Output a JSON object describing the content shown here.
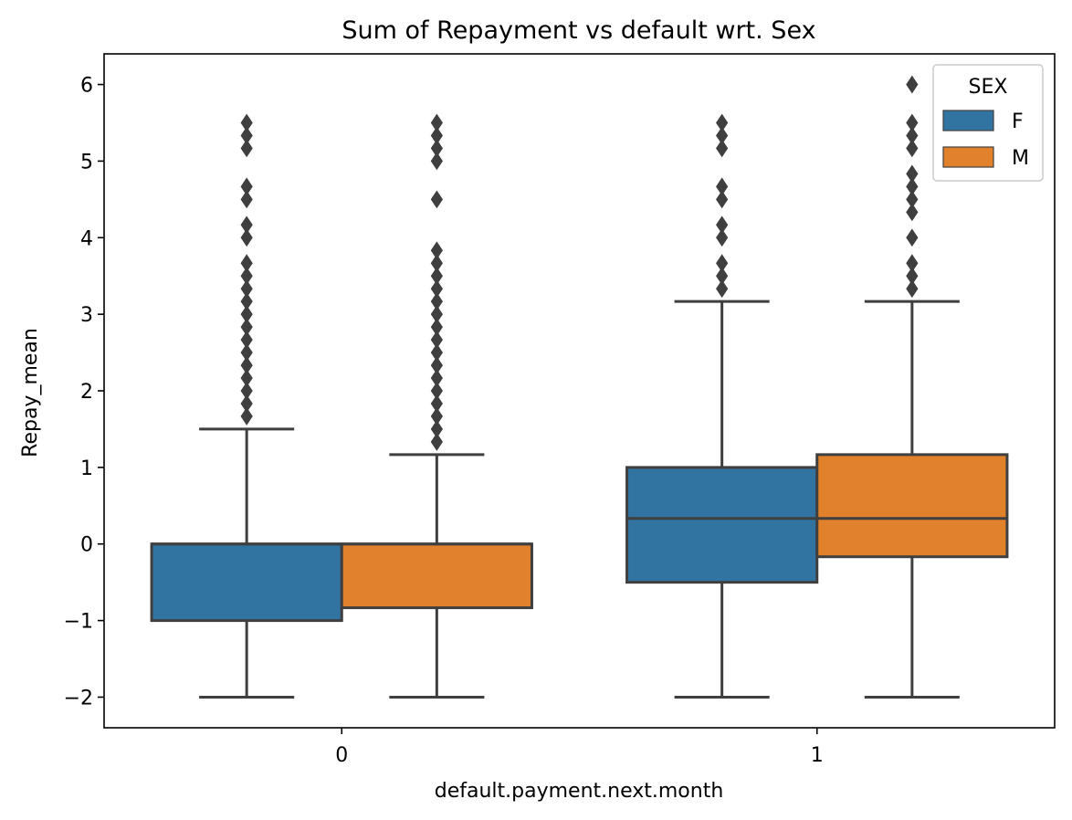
{
  "chart_data": {
    "type": "box",
    "title": "Sum of Repayment vs default wrt. Sex",
    "xlabel": "default.payment.next.month",
    "ylabel": "Repay_mean",
    "categories": [
      "0",
      "1"
    ],
    "ylim": [
      -2.4,
      6.4
    ],
    "yticks": [
      -2,
      -1,
      0,
      1,
      2,
      3,
      4,
      5,
      6
    ],
    "ytick_labels": [
      "−2",
      "−1",
      "0",
      "1",
      "2",
      "3",
      "4",
      "5",
      "6"
    ],
    "legend": {
      "title": "SEX",
      "position": "top-right"
    },
    "series": [
      {
        "name": "F",
        "color": "#3274a1",
        "boxes": [
          {
            "category": "0",
            "whisker_low": -2,
            "q1": -1,
            "median": 0,
            "q3": 0,
            "whisker_high": 1.5,
            "outliers": [
              1.667,
              1.833,
              2.0,
              2.167,
              2.333,
              2.5,
              2.667,
              2.833,
              3.0,
              3.167,
              3.333,
              3.5,
              3.667,
              4.0,
              4.167,
              4.5,
              4.667,
              5.167,
              5.333,
              5.5
            ]
          },
          {
            "category": "1",
            "whisker_low": -2,
            "q1": -0.5,
            "median": 0.333,
            "q3": 1.0,
            "whisker_high": 3.167,
            "outliers": [
              3.333,
              3.5,
              3.667,
              4.0,
              4.167,
              4.5,
              4.667,
              5.167,
              5.333,
              5.5
            ]
          }
        ]
      },
      {
        "name": "M",
        "color": "#e1812c",
        "boxes": [
          {
            "category": "0",
            "whisker_low": -2,
            "q1": -0.833,
            "median": 0,
            "q3": 0,
            "whisker_high": 1.167,
            "outliers": [
              1.333,
              1.5,
              1.667,
              1.833,
              2.0,
              2.167,
              2.333,
              2.5,
              2.667,
              2.833,
              3.0,
              3.167,
              3.333,
              3.5,
              3.667,
              3.833,
              4.5,
              5.0,
              5.167,
              5.333,
              5.5
            ]
          },
          {
            "category": "1",
            "whisker_low": -2,
            "q1": -0.167,
            "median": 0.333,
            "q3": 1.167,
            "whisker_high": 3.167,
            "outliers": [
              3.333,
              3.5,
              3.667,
              4.0,
              4.333,
              4.5,
              4.667,
              4.833,
              5.167,
              5.333,
              5.5,
              6.0
            ]
          }
        ]
      }
    ],
    "grid": false
  }
}
